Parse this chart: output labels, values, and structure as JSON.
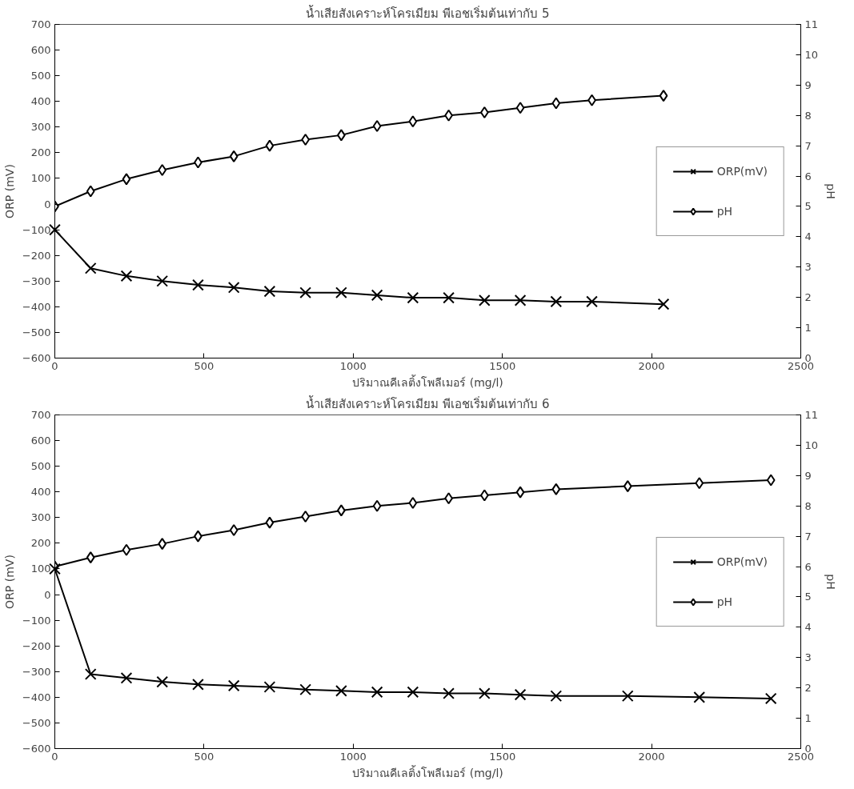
{
  "chart_data": [
    {
      "type": "line",
      "title": "น้ำเสียสังเคราะห์โครเมียม พีเอชเริ่มต้นเท่ากับ 5",
      "xlabel": "ปริมาณคีเลติ้งโพลีเมอร์ (mg/l)",
      "ylabel": "ORP (mV)",
      "y2label": "pH",
      "x": [
        0,
        120,
        240,
        360,
        480,
        600,
        720,
        840,
        960,
        1080,
        1200,
        1320,
        1440,
        1560,
        1680,
        1800,
        2040
      ],
      "series": [
        {
          "name": "ORP(mV)",
          "color": "#000000",
          "marker": "cross",
          "values": [
            -100,
            -250,
            -280,
            -300,
            -315,
            -325,
            -340,
            -345,
            -345,
            -355,
            -365,
            -365,
            -375,
            -375,
            -380,
            -380,
            -390
          ]
        },
        {
          "name": "pH",
          "color": "#000000",
          "marker": "diamond",
          "axis": "y2",
          "values": [
            5.0,
            5.5,
            5.9,
            6.2,
            6.45,
            6.65,
            7.0,
            7.2,
            7.35,
            7.65,
            7.8,
            8.0,
            8.1,
            8.25,
            8.4,
            8.5,
            8.65
          ]
        }
      ],
      "xlim": [
        0,
        2500
      ],
      "xticks": [
        0,
        500,
        1000,
        1500,
        2000,
        2500
      ],
      "ylim": [
        -600,
        700
      ],
      "yticks": [
        -600,
        -500,
        -400,
        -300,
        -200,
        -100,
        0,
        100,
        200,
        300,
        400,
        500,
        600,
        700
      ],
      "y2lim": [
        0,
        11
      ],
      "y2ticks": [
        0,
        1,
        2,
        3,
        4,
        5,
        6,
        7,
        8,
        9,
        10,
        11
      ],
      "grid": false,
      "legend": "right",
      "line_style": "solid"
    },
    {
      "type": "line",
      "title": "น้ำเสียสังเคราะห์โครเมียม พีเอชเริ่มต้นเท่ากับ 6",
      "xlabel": "ปริมาณคีเลติ้งโพลีเมอร์ (mg/l)",
      "ylabel": "ORP (mV)",
      "y2label": "pH",
      "x": [
        0,
        120,
        240,
        360,
        480,
        600,
        720,
        840,
        960,
        1080,
        1200,
        1320,
        1440,
        1560,
        1680,
        1920,
        2160,
        2400
      ],
      "series": [
        {
          "name": "ORP(mV)",
          "color": "#000000",
          "marker": "cross",
          "values": [
            100,
            -310,
            -325,
            -340,
            -350,
            -355,
            -360,
            -370,
            -375,
            -380,
            -380,
            -385,
            -385,
            -390,
            -395,
            -395,
            -400,
            -405
          ]
        },
        {
          "name": "pH",
          "color": "#000000",
          "marker": "diamond",
          "axis": "y2",
          "values": [
            6.0,
            6.3,
            6.55,
            6.75,
            7.0,
            7.2,
            7.45,
            7.65,
            7.85,
            8.0,
            8.1,
            8.25,
            8.35,
            8.45,
            8.55,
            8.65,
            8.75,
            8.85
          ]
        }
      ],
      "xlim": [
        0,
        2500
      ],
      "xticks": [
        0,
        500,
        1000,
        1500,
        2000,
        2500
      ],
      "ylim": [
        -600,
        700
      ],
      "yticks": [
        -600,
        -500,
        -400,
        -300,
        -200,
        -100,
        0,
        100,
        200,
        300,
        400,
        500,
        600,
        700
      ],
      "y2lim": [
        0,
        11
      ],
      "y2ticks": [
        0,
        1,
        2,
        3,
        4,
        5,
        6,
        7,
        8,
        9,
        10,
        11
      ],
      "grid": false,
      "legend": "right",
      "line_style": "solid"
    }
  ]
}
